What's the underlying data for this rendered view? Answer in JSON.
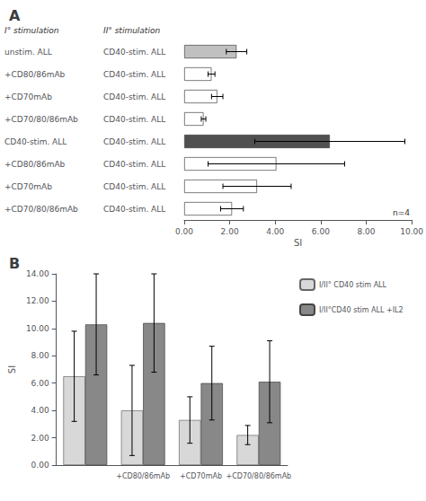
{
  "chart_data": [
    {
      "type": "bar",
      "title": "A",
      "orientation": "horizontal",
      "categories": [
        "unstim. ALL",
        "+CD80/86mAb",
        "+CD70mAb",
        "+CD70/80/86mAb",
        "CD40-stim. ALL",
        "+CD80/86mAb",
        "+CD70mAb",
        "+CD70/80/86mAb"
      ],
      "categories_right": [
        "CD40-stim. ALL",
        "CD40-stim. ALL",
        "CD40-stim. ALL",
        "CD40-stim. ALL",
        "CD40-stim. ALL",
        "CD40-stim. ALL",
        "CD40-stim. ALL",
        "CD40-stim. ALL"
      ],
      "category_headers": [
        "I° stimulation",
        "II° stimulation"
      ],
      "values": [
        2.3,
        1.2,
        1.45,
        0.85,
        6.4,
        4.05,
        3.2,
        2.1
      ],
      "errors": [
        0.45,
        0.15,
        0.25,
        0.1,
        3.3,
        3.0,
        1.5,
        0.5
      ],
      "colors": [
        "#c0c0c0",
        "white",
        "white",
        "white",
        "#505050",
        "white",
        "white",
        "white"
      ],
      "xlabel": "SI",
      "xlim": [
        0,
        10.0
      ],
      "xticks": [
        {
          "value": 0,
          "label": "0.00"
        },
        {
          "value": 2,
          "label": "2.00"
        },
        {
          "value": 4,
          "label": "4.00"
        },
        {
          "value": 6,
          "label": "6.00"
        },
        {
          "value": 8,
          "label": "8.00"
        },
        {
          "value": 10,
          "label": "10.00"
        }
      ],
      "annotation": "n=4",
      "grid": false
    },
    {
      "type": "bar",
      "title": "B",
      "categories": [
        null,
        "+CD80/86mAb",
        "+CD70mAb",
        "+CD70/80/86mAb"
      ],
      "series": [
        {
          "name": "I/II° CD40 stim ALL",
          "color": "#d8d8d8",
          "values": [
            6.5,
            4.0,
            3.3,
            2.2
          ],
          "errors": [
            3.3,
            3.3,
            1.7,
            0.7
          ]
        },
        {
          "name": "I/II°CD40 stim ALL +IL2",
          "color": "#888888",
          "values": [
            10.3,
            10.4,
            6.0,
            6.1
          ],
          "errors": [
            3.7,
            3.6,
            2.7,
            3.0
          ]
        }
      ],
      "ylabel": "SI",
      "ylim": [
        0,
        14.0
      ],
      "yticks": [
        {
          "value": 0,
          "label": "0.00"
        },
        {
          "value": 2,
          "label": "2.00"
        },
        {
          "value": 4,
          "label": "4.00"
        },
        {
          "value": 6,
          "label": "6.00"
        },
        {
          "value": 8,
          "label": "8.00"
        },
        {
          "value": 10,
          "label": "10.00"
        },
        {
          "value": 12,
          "label": "12.00"
        },
        {
          "value": 14,
          "label": "14.00"
        }
      ],
      "legend": "right",
      "grid": false
    }
  ]
}
